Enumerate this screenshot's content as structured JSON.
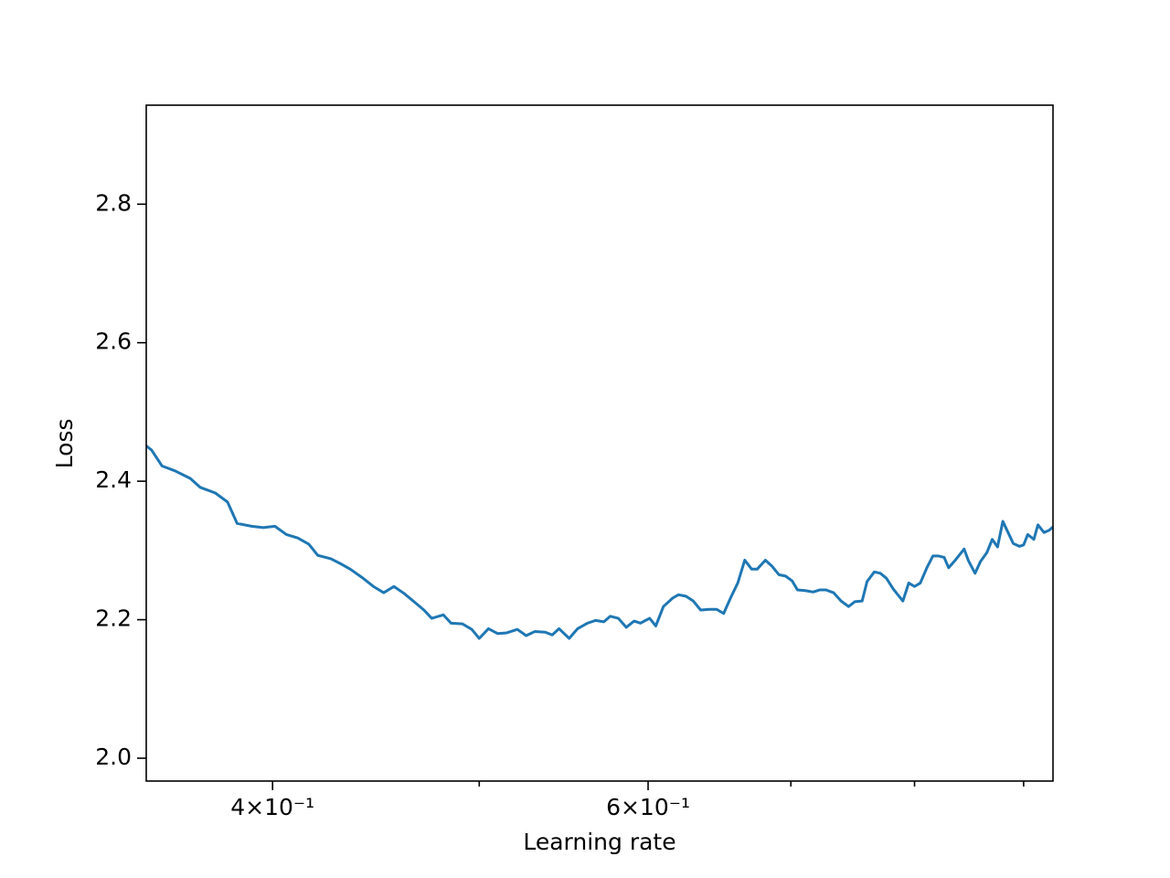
{
  "chart_data": {
    "type": "line",
    "xlabel": "Learning rate",
    "ylabel": "Loss",
    "xscale": "log",
    "color": "#1f77b4",
    "xlim": [
      0.349,
      0.929
    ],
    "ylim": [
      1.967,
      2.943
    ],
    "xticks": [
      {
        "value": 0.4,
        "label": "4×10⁻¹"
      },
      {
        "value": 0.6,
        "label": "6×10⁻¹"
      }
    ],
    "xminorticks": [
      0.5,
      0.7,
      0.8,
      0.9
    ],
    "yticks": [
      {
        "value": 2,
        "label": "2.0"
      },
      2.2,
      2.4,
      2.6,
      2.8
    ],
    "x": [
      0.349,
      0.351,
      0.355,
      0.36,
      0.366,
      0.37,
      0.376,
      0.381,
      0.385,
      0.391,
      0.396,
      0.401,
      0.406,
      0.411,
      0.416,
      0.42,
      0.426,
      0.431,
      0.435,
      0.441,
      0.446,
      0.451,
      0.456,
      0.461,
      0.466,
      0.471,
      0.475,
      0.481,
      0.485,
      0.491,
      0.496,
      0.5,
      0.505,
      0.51,
      0.515,
      0.521,
      0.526,
      0.531,
      0.537,
      0.541,
      0.545,
      0.551,
      0.556,
      0.562,
      0.567,
      0.572,
      0.576,
      0.581,
      0.586,
      0.591,
      0.595,
      0.601,
      0.605,
      0.61,
      0.616,
      0.62,
      0.625,
      0.63,
      0.635,
      0.641,
      0.646,
      0.651,
      0.656,
      0.661,
      0.666,
      0.671,
      0.675,
      0.681,
      0.686,
      0.691,
      0.696,
      0.701,
      0.705,
      0.711,
      0.717,
      0.722,
      0.727,
      0.733,
      0.739,
      0.745,
      0.75,
      0.756,
      0.76,
      0.766,
      0.771,
      0.776,
      0.782,
      0.79,
      0.795,
      0.8,
      0.805,
      0.811,
      0.816,
      0.821,
      0.826,
      0.83,
      0.836,
      0.844,
      0.848,
      0.854,
      0.859,
      0.865,
      0.87,
      0.875,
      0.88,
      0.885,
      0.89,
      0.896,
      0.9,
      0.904,
      0.91,
      0.914,
      0.92,
      0.925,
      0.929
    ],
    "values": [
      2.451,
      2.445,
      2.422,
      2.415,
      2.404,
      2.391,
      2.383,
      2.37,
      2.339,
      2.335,
      2.333,
      2.335,
      2.323,
      2.318,
      2.309,
      2.293,
      2.288,
      2.28,
      2.273,
      2.26,
      2.248,
      2.239,
      2.248,
      2.238,
      2.226,
      2.214,
      2.202,
      2.207,
      2.195,
      2.194,
      2.186,
      2.173,
      2.187,
      2.18,
      2.181,
      2.186,
      2.177,
      2.183,
      2.182,
      2.178,
      2.187,
      2.173,
      2.187,
      2.195,
      2.199,
      2.197,
      2.205,
      2.202,
      2.189,
      2.198,
      2.195,
      2.202,
      2.191,
      2.219,
      2.231,
      2.236,
      2.234,
      2.227,
      2.214,
      2.215,
      2.215,
      2.209,
      2.232,
      2.253,
      2.286,
      2.273,
      2.273,
      2.286,
      2.277,
      2.265,
      2.263,
      2.256,
      2.243,
      2.242,
      2.24,
      2.243,
      2.243,
      2.239,
      2.227,
      2.219,
      2.226,
      2.227,
      2.255,
      2.269,
      2.267,
      2.26,
      2.244,
      2.227,
      2.253,
      2.248,
      2.253,
      2.276,
      2.292,
      2.292,
      2.29,
      2.275,
      2.286,
      2.302,
      2.285,
      2.267,
      2.284,
      2.297,
      2.316,
      2.305,
      2.342,
      2.326,
      2.31,
      2.306,
      2.308,
      2.323,
      2.316,
      2.337,
      2.326,
      2.329,
      2.334
    ]
  }
}
